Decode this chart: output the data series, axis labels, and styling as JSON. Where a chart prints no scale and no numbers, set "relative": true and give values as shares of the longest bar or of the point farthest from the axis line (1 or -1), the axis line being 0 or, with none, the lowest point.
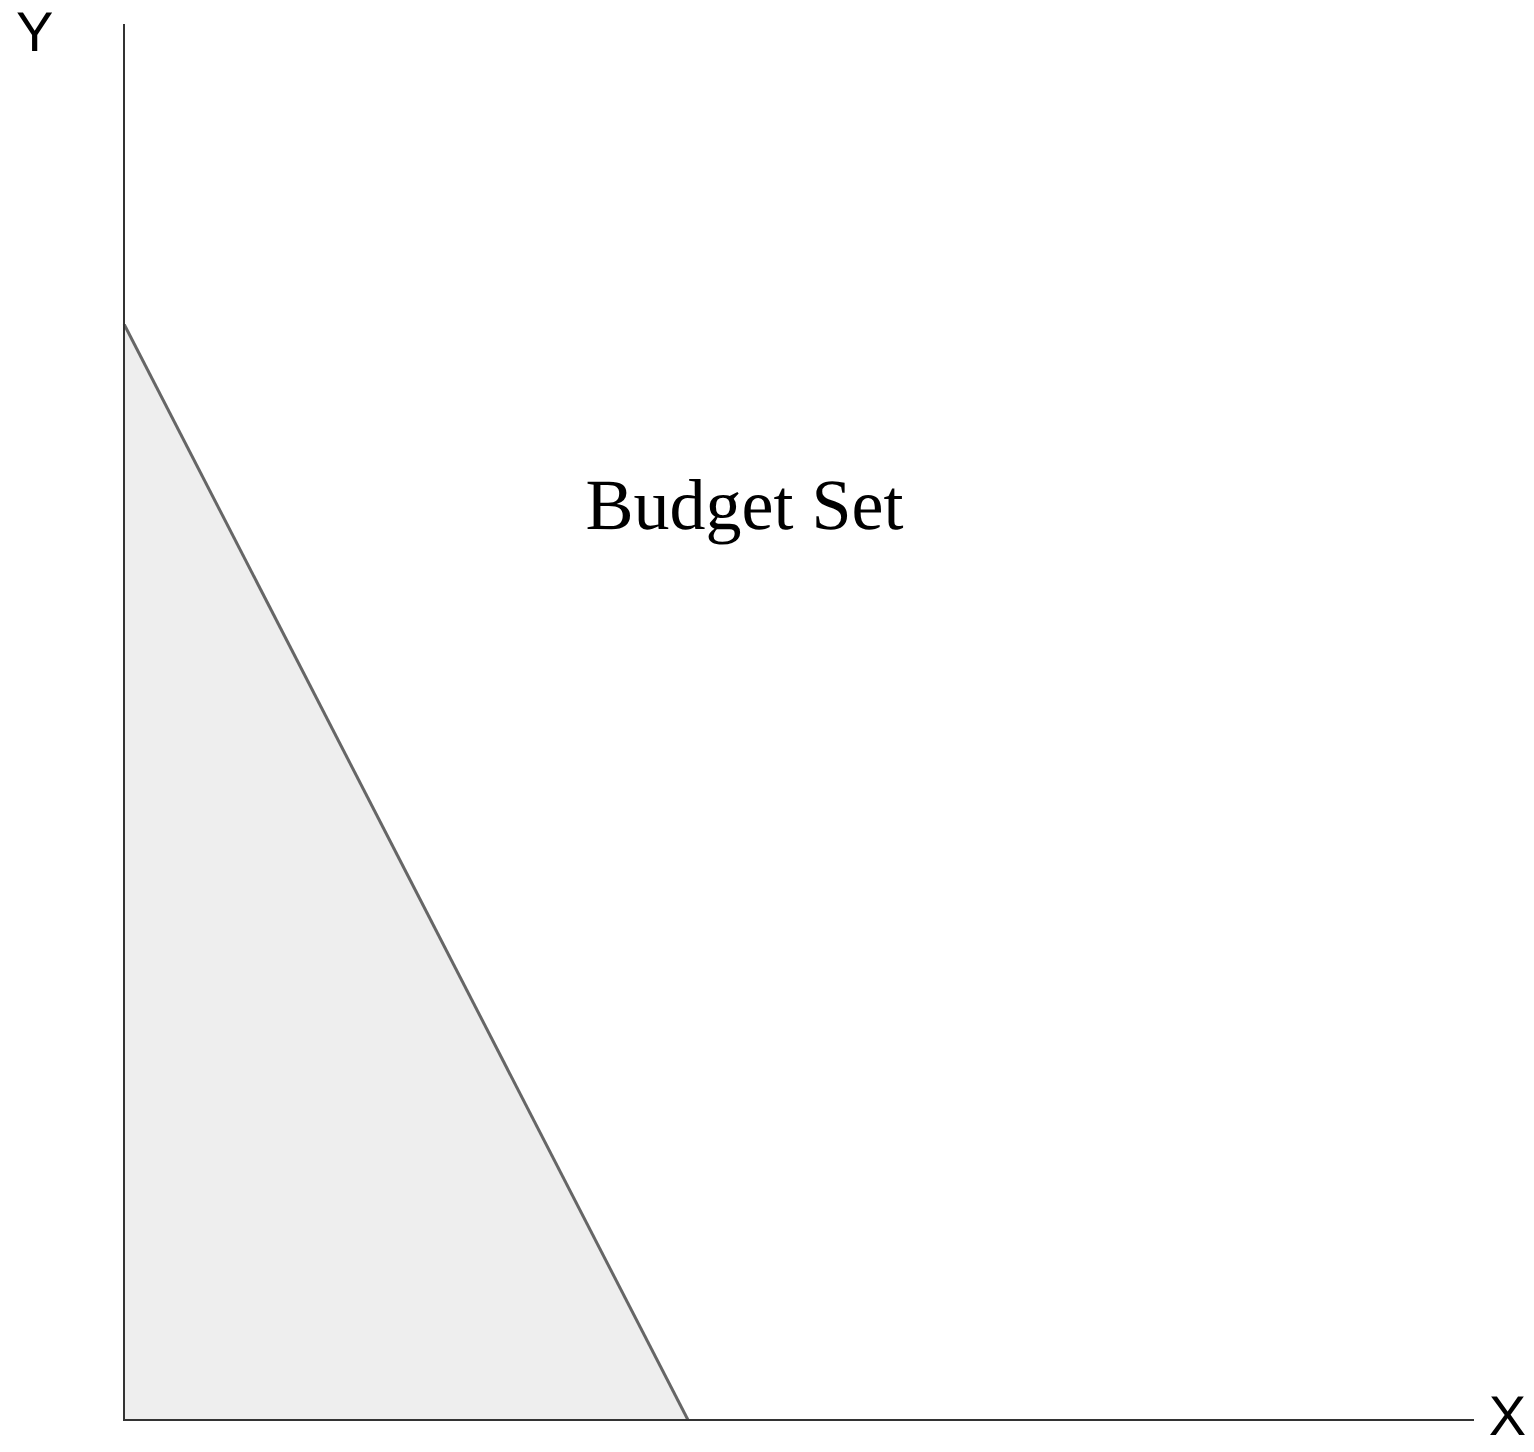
{
  "chart_data": {
    "type": "area",
    "relative": true,
    "xlabel": "X",
    "ylabel": "Y",
    "annotations": [
      "Budget Set"
    ],
    "categories": [
      null,
      null,
      null,
      null,
      null,
      null
    ],
    "values": [
      1,
      0.5,
      0,
      null,
      null,
      null
    ],
    "color": "#666666",
    "legend": false,
    "marker": "none"
  }
}
